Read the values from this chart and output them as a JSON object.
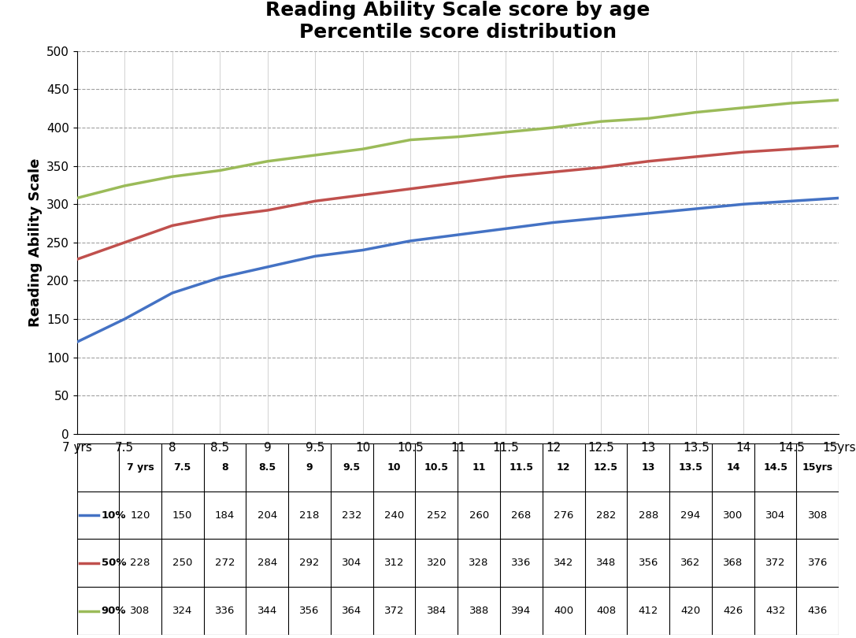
{
  "title": "Reading Ability Scale score by age\nPercentile score distribution",
  "ylabel": "Reading Ability Scale",
  "ages": [
    "7 yrs",
    "7.5",
    "8",
    "8.5",
    "9",
    "9.5",
    "10",
    "10.5",
    "11",
    "11.5",
    "12",
    "12.5",
    "13",
    "13.5",
    "14",
    "14.5",
    "15yrs"
  ],
  "age_numeric": [
    7,
    7.5,
    8,
    8.5,
    9,
    9.5,
    10,
    10.5,
    11,
    11.5,
    12,
    12.5,
    13,
    13.5,
    14,
    14.5,
    15
  ],
  "series": [
    {
      "label": "10%",
      "color": "#4472C4",
      "values": [
        120,
        150,
        184,
        204,
        218,
        232,
        240,
        252,
        260,
        268,
        276,
        282,
        288,
        294,
        300,
        304,
        308
      ]
    },
    {
      "label": "50%",
      "color": "#C0504D",
      "values": [
        228,
        250,
        272,
        284,
        292,
        304,
        312,
        320,
        328,
        336,
        342,
        348,
        356,
        362,
        368,
        372,
        376
      ]
    },
    {
      "label": "90%",
      "color": "#9BBB59",
      "values": [
        308,
        324,
        336,
        344,
        356,
        364,
        372,
        384,
        388,
        394,
        400,
        408,
        412,
        420,
        426,
        432,
        436
      ]
    }
  ],
  "ylim": [
    0,
    500
  ],
  "yticks": [
    0,
    50,
    100,
    150,
    200,
    250,
    300,
    350,
    400,
    450,
    500
  ],
  "background_color": "#FFFFFF",
  "grid_color": "#A0A0A0",
  "title_fontsize": 18,
  "axis_label_fontsize": 13,
  "tick_fontsize": 11,
  "line_width": 2.5
}
